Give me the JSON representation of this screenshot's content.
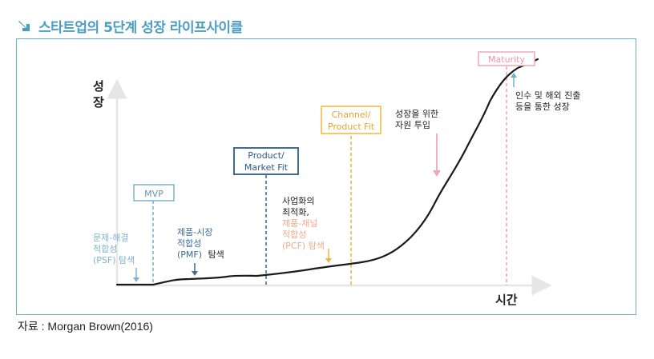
{
  "title": "스타트업의 5단계 성장 라이프사이클",
  "axes": {
    "y_label": [
      "성",
      "장"
    ],
    "x_label": "시간"
  },
  "stages": {
    "mvp": "MVP",
    "pmf": [
      "Product/",
      "Market Fit"
    ],
    "pcf": [
      "Channel/",
      "Product Fit"
    ],
    "maturity": "Maturity"
  },
  "annotations": {
    "psf": [
      "문제-해결",
      "적합성",
      "(PSF) 탐색"
    ],
    "pmf_search_a": [
      "제품-시장",
      "적합성"
    ],
    "pmf_search_b": {
      "pre": "(PMF)",
      "post": "탐색"
    },
    "optimization": {
      "lines": [
        "사업화의",
        "최적화,"
      ],
      "colored": [
        "제품-채널",
        "적합성",
        "(PCF) 탐색"
      ]
    },
    "investment": [
      "성장을 위한",
      "자원 투입"
    ],
    "expansion": [
      "인수 및 해외 진출",
      "등을 통한 성장"
    ]
  },
  "source": "자료 : Morgan Brown(2016)",
  "colors": {
    "title": "#4a9cc0",
    "frame": "#6ab0c9",
    "psf": "#7fb3cc",
    "mvp": "#7fb0cc",
    "pmf": "#3f6c94",
    "pcf": "#f0b540",
    "pcf_text": "#f3a98a",
    "maturity": "#f0a7b8",
    "curve": "#1a1a1a",
    "axis": "#e6e6e6"
  }
}
